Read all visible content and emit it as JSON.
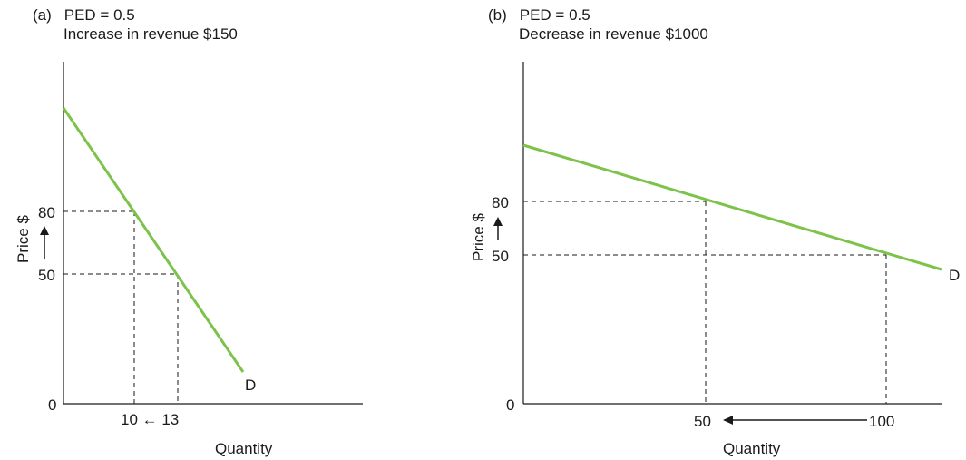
{
  "chart_data": [
    {
      "type": "line",
      "panel_label": "(a)",
      "title": "PED = 0.5",
      "subtitle": "Increase in revenue $150",
      "xlabel": "Quantity",
      "ylabel": "Price $",
      "origin_label": "0",
      "curve_label": "D",
      "line_color": "#7dc24b",
      "xlim": [
        0,
        40
      ],
      "ylim": [
        0,
        170
      ],
      "x_tick_text": "10 ← 13",
      "y_ticks": [
        "80",
        "50"
      ],
      "series": [
        {
          "name": "D",
          "x": [
            0,
            26
          ],
          "y": [
            140,
            15
          ]
        }
      ],
      "points": [
        {
          "x": 10,
          "y": 80
        },
        {
          "x": 13,
          "y": 50
        }
      ]
    },
    {
      "type": "line",
      "panel_label": "(b)",
      "title": "PED = 0.5",
      "subtitle": "Decrease in revenue $1000",
      "xlabel": "Quantity",
      "ylabel": "Price $",
      "origin_label": "0",
      "curve_label": "D",
      "line_color": "#7dc24b",
      "xlim": [
        0,
        115
      ],
      "ylim": [
        0,
        170
      ],
      "x_ticks": [
        "50",
        "100"
      ],
      "y_ticks": [
        "80",
        "50"
      ],
      "series": [
        {
          "name": "D",
          "x": [
            0,
            115
          ],
          "y": [
            123,
            40
          ]
        }
      ],
      "points": [
        {
          "x": 50,
          "y": 80
        },
        {
          "x": 100,
          "y": 50
        }
      ]
    }
  ]
}
